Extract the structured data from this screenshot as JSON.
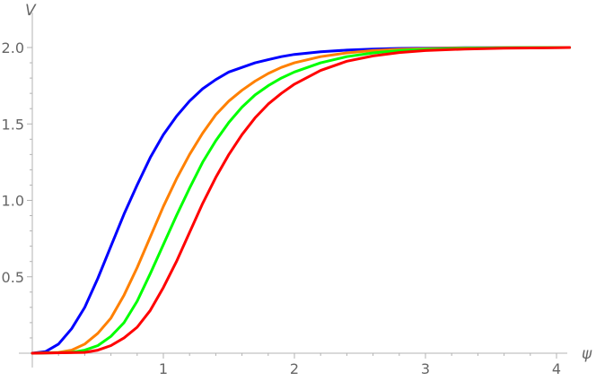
{
  "chart_data": {
    "type": "line",
    "xlabel": "ψ",
    "ylabel": "V",
    "xlim": [
      -0.1,
      4.1
    ],
    "ylim": [
      0,
      2.1
    ],
    "xticks": [
      1,
      2,
      3,
      4
    ],
    "xtick_labels": [
      "1",
      "2",
      "3",
      "4"
    ],
    "yticks": [
      0.5,
      1.0,
      1.5,
      2.0
    ],
    "ytick_labels": [
      "0.5",
      "1.0",
      "1.5",
      "2.0"
    ],
    "grid": false,
    "series": [
      {
        "color": "#0000ff",
        "x": [
          0,
          0.1,
          0.2,
          0.3,
          0.4,
          0.5,
          0.6,
          0.7,
          0.8,
          0.9,
          1.0,
          1.1,
          1.2,
          1.3,
          1.4,
          1.5,
          1.6,
          1.7,
          1.8,
          1.9,
          2.0,
          2.2,
          2.4,
          2.6,
          2.8,
          3.0,
          3.3,
          3.6,
          4.0,
          4.1
        ],
        "y": [
          0,
          0.01,
          0.06,
          0.16,
          0.3,
          0.49,
          0.7,
          0.91,
          1.1,
          1.28,
          1.43,
          1.55,
          1.65,
          1.73,
          1.79,
          1.84,
          1.87,
          1.9,
          1.92,
          1.94,
          1.955,
          1.972,
          1.983,
          1.99,
          1.994,
          1.996,
          1.998,
          1.999,
          2.0,
          2.0
        ]
      },
      {
        "color": "#ff8000",
        "x": [
          0,
          0.2,
          0.3,
          0.4,
          0.5,
          0.6,
          0.7,
          0.8,
          0.9,
          1.0,
          1.1,
          1.2,
          1.3,
          1.4,
          1.5,
          1.6,
          1.7,
          1.8,
          1.9,
          2.0,
          2.2,
          2.4,
          2.6,
          2.8,
          3.0,
          3.3,
          3.6,
          4.0,
          4.1
        ],
        "y": [
          0,
          0.005,
          0.02,
          0.06,
          0.13,
          0.23,
          0.38,
          0.56,
          0.76,
          0.96,
          1.14,
          1.3,
          1.44,
          1.56,
          1.65,
          1.72,
          1.78,
          1.83,
          1.87,
          1.9,
          1.94,
          1.965,
          1.98,
          1.988,
          1.993,
          1.997,
          1.999,
          2.0,
          2.0
        ]
      },
      {
        "color": "#00ff00",
        "x": [
          0,
          0.3,
          0.4,
          0.5,
          0.6,
          0.7,
          0.8,
          0.9,
          1.0,
          1.1,
          1.2,
          1.3,
          1.4,
          1.5,
          1.6,
          1.7,
          1.8,
          1.9,
          2.0,
          2.2,
          2.4,
          2.6,
          2.8,
          3.0,
          3.3,
          3.6,
          4.0,
          4.1
        ],
        "y": [
          0,
          0.005,
          0.02,
          0.05,
          0.11,
          0.2,
          0.34,
          0.52,
          0.71,
          0.9,
          1.08,
          1.25,
          1.39,
          1.51,
          1.61,
          1.69,
          1.75,
          1.8,
          1.84,
          1.9,
          1.94,
          1.965,
          1.98,
          1.988,
          1.995,
          1.998,
          2.0,
          2.0
        ]
      },
      {
        "color": "#ff0000",
        "x": [
          0,
          0.4,
          0.5,
          0.6,
          0.7,
          0.8,
          0.9,
          1.0,
          1.1,
          1.2,
          1.3,
          1.4,
          1.5,
          1.6,
          1.7,
          1.8,
          1.9,
          2.0,
          2.2,
          2.4,
          2.6,
          2.8,
          3.0,
          3.3,
          3.6,
          4.0,
          4.1
        ],
        "y": [
          0,
          0.005,
          0.02,
          0.05,
          0.1,
          0.17,
          0.28,
          0.43,
          0.6,
          0.79,
          0.98,
          1.15,
          1.3,
          1.43,
          1.54,
          1.63,
          1.7,
          1.76,
          1.85,
          1.91,
          1.945,
          1.967,
          1.98,
          1.99,
          1.996,
          1.999,
          2.0
        ]
      }
    ]
  }
}
